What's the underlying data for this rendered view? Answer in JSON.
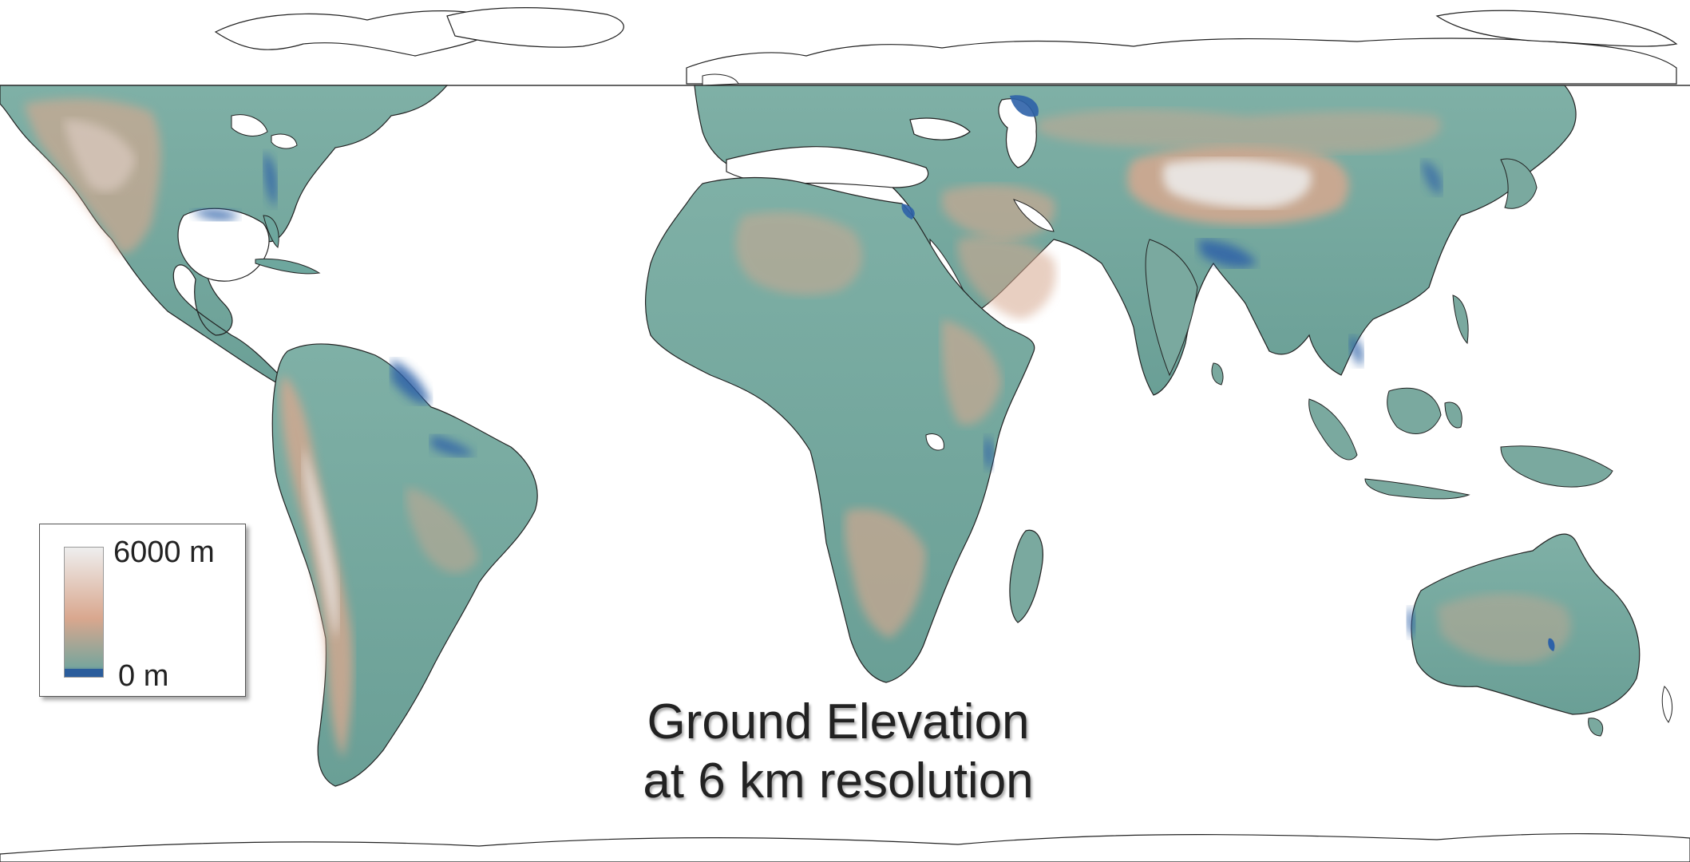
{
  "title_line1": "Ground Elevation",
  "title_line2": "at 6 km resolution",
  "legend": {
    "max_label": "6000 m",
    "min_label": "0 m",
    "gradient_stops": [
      "#eeeeee",
      "#d9a78e",
      "#79a59c",
      "#2b5d9c"
    ]
  },
  "colors": {
    "lowland": "#6ea79e",
    "midland": "#87aea5",
    "highland": "#d6a88f",
    "plateau": "#e2d0c8",
    "peak": "#eeeeee",
    "coastal_low": "#2d62a8",
    "outline": "#222222"
  }
}
